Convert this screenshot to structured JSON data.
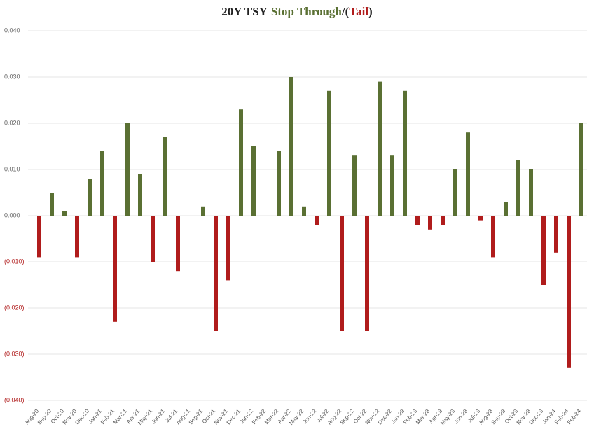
{
  "chart_data": {
    "type": "bar",
    "title_parts": [
      {
        "text": "20Y TSY",
        "color": "#222222"
      },
      {
        "text": "Stop Through",
        "color": "#5a7033"
      },
      {
        "text": "/",
        "color": "#222222"
      },
      {
        "text": "(",
        "color": "#222222"
      },
      {
        "text": "Tail",
        "color": "#b01c1c"
      },
      {
        "text": ")",
        "color": "#222222"
      }
    ],
    "categories": [
      "Aug-20",
      "Sep-20",
      "Oct-20",
      "Nov-20",
      "Dec-20",
      "Jan-21",
      "Feb-21",
      "Mar-21",
      "Apr-21",
      "May-21",
      "Jun-21",
      "Jul-21",
      "Aug-21",
      "Sep-21",
      "Oct-21",
      "Nov-21",
      "Dec-21",
      "Jan-22",
      "Feb-22",
      "Mar-22",
      "Apr-22",
      "May-22",
      "Jun-22",
      "Jul-22",
      "Aug-22",
      "Sep-22",
      "Oct-22",
      "Nov-22",
      "Dec-22",
      "Jan-23",
      "Feb-23",
      "Mar-23",
      "Apr-23",
      "May-23",
      "Jun-23",
      "Jul-23",
      "Aug-23",
      "Sep-23",
      "Oct-23",
      "Nov-23",
      "Dec-23",
      "Jan-24",
      "Feb-24",
      "Feb-24"
    ],
    "values": [
      -0.009,
      0.005,
      0.001,
      -0.009,
      0.008,
      0.014,
      -0.023,
      0.02,
      0.009,
      -0.01,
      0.017,
      -0.012,
      null,
      0.002,
      -0.025,
      -0.014,
      0.023,
      0.015,
      null,
      0.014,
      0.03,
      0.002,
      -0.002,
      0.027,
      -0.025,
      0.013,
      -0.025,
      0.029,
      0.013,
      0.027,
      -0.002,
      -0.003,
      -0.002,
      0.01,
      0.018,
      -0.001,
      -0.009,
      0.003,
      0.012,
      0.01,
      -0.015,
      -0.008,
      -0.033,
      0.02
    ],
    "positive_color": "#5a7033",
    "negative_color": "#b01c1c",
    "ylim": [
      -0.04,
      0.04
    ],
    "yticks": [
      {
        "value": 0.04,
        "label": "0.040"
      },
      {
        "value": 0.03,
        "label": "0.030"
      },
      {
        "value": 0.02,
        "label": "0.020"
      },
      {
        "value": 0.01,
        "label": "0.010"
      },
      {
        "value": 0,
        "label": "0.000"
      },
      {
        "value": -0.01,
        "label": "(0.010)"
      },
      {
        "value": -0.02,
        "label": "(0.020)"
      },
      {
        "value": -0.03,
        "label": "(0.030)"
      },
      {
        "value": -0.04,
        "label": "(0.040)"
      }
    ],
    "grid": true
  }
}
